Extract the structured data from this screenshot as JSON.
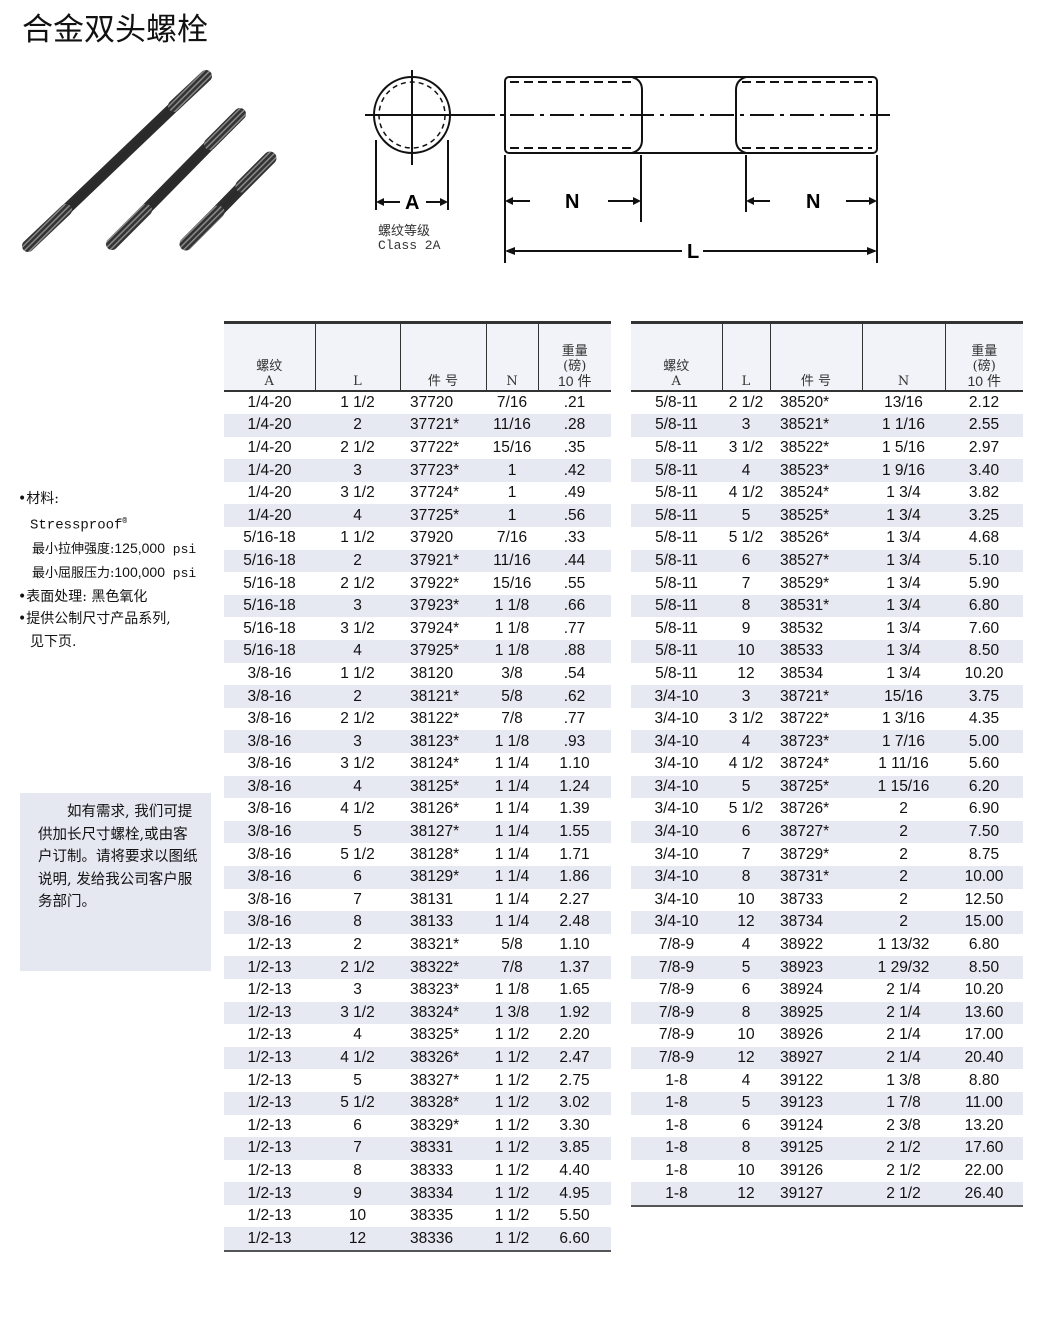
{
  "title": "合金双头螺栓",
  "drawing": {
    "label_a": "A",
    "label_n": "N",
    "label_l": "L",
    "thread_class_cn": "螺纹等级",
    "thread_class": "Class 2A"
  },
  "notes": {
    "material_label": "•材料:",
    "material": "Stressproof",
    "registered": "®",
    "tensile_label": "最小拉伸强度:",
    "tensile_value": "125,000",
    "tensile_unit": " psi",
    "yield_label": "最小屈服压力:",
    "yield_value": "100,000",
    "yield_unit": " psi",
    "finish": "•表面处理: 黑色氧化",
    "metric_1": "•提供公制尺寸产品系列,",
    "metric_2": "见下页."
  },
  "custom_note": "如有需求, 我们可提供加长尺寸螺栓,或由客户订制。请将要求以图纸说明, 发给我公司客户服务部门。",
  "table_header": {
    "thread_cn": "螺纹",
    "thread": "A",
    "length": "L",
    "part": "件 号",
    "n": "N",
    "weight_1": "重量",
    "weight_2": "(磅)",
    "weight_3": "10 件"
  },
  "table_left": [
    [
      "1/4-20",
      "1 1/2",
      "37720",
      "7/16",
      ".21"
    ],
    [
      "1/4-20",
      "2",
      "37721*",
      "11/16",
      ".28"
    ],
    [
      "1/4-20",
      "2 1/2",
      "37722*",
      "15/16",
      ".35"
    ],
    [
      "1/4-20",
      "3",
      "37723*",
      "1",
      ".42"
    ],
    [
      "1/4-20",
      "3 1/2",
      "37724*",
      "1",
      ".49"
    ],
    [
      "1/4-20",
      "4",
      "37725*",
      "1",
      ".56"
    ],
    [
      "5/16-18",
      "1 1/2",
      "37920",
      "7/16",
      ".33"
    ],
    [
      "5/16-18",
      "2",
      "37921*",
      "11/16",
      ".44"
    ],
    [
      "5/16-18",
      "2 1/2",
      "37922*",
      "15/16",
      ".55"
    ],
    [
      "5/16-18",
      "3",
      "37923*",
      "1 1/8",
      ".66"
    ],
    [
      "5/16-18",
      "3 1/2",
      "37924*",
      "1 1/8",
      ".77"
    ],
    [
      "5/16-18",
      "4",
      "37925*",
      "1 1/8",
      ".88"
    ],
    [
      "3/8-16",
      "1 1/2",
      "38120",
      "3/8",
      ".54"
    ],
    [
      "3/8-16",
      "2",
      "38121*",
      "5/8",
      ".62"
    ],
    [
      "3/8-16",
      "2 1/2",
      "38122*",
      "7/8",
      ".77"
    ],
    [
      "3/8-16",
      "3",
      "38123*",
      "1 1/8",
      ".93"
    ],
    [
      "3/8-16",
      "3 1/2",
      "38124*",
      "1 1/4",
      "1.10"
    ],
    [
      "3/8-16",
      "4",
      "38125*",
      "1 1/4",
      "1.24"
    ],
    [
      "3/8-16",
      "4 1/2",
      "38126*",
      "1 1/4",
      "1.39"
    ],
    [
      "3/8-16",
      "5",
      "38127*",
      "1 1/4",
      "1.55"
    ],
    [
      "3/8-16",
      "5 1/2",
      "38128*",
      "1 1/4",
      "1.71"
    ],
    [
      "3/8-16",
      "6",
      "38129*",
      "1 1/4",
      "1.86"
    ],
    [
      "3/8-16",
      "7",
      "38131",
      "1 1/4",
      "2.27"
    ],
    [
      "3/8-16",
      "8",
      "38133",
      "1 1/4",
      "2.48"
    ],
    [
      "1/2-13",
      "2",
      "38321*",
      "5/8",
      "1.10"
    ],
    [
      "1/2-13",
      "2 1/2",
      "38322*",
      "7/8",
      "1.37"
    ],
    [
      "1/2-13",
      "3",
      "38323*",
      "1 1/8",
      "1.65"
    ],
    [
      "1/2-13",
      "3 1/2",
      "38324*",
      "1 3/8",
      "1.92"
    ],
    [
      "1/2-13",
      "4",
      "38325*",
      "1 1/2",
      "2.20"
    ],
    [
      "1/2-13",
      "4 1/2",
      "38326*",
      "1 1/2",
      "2.47"
    ],
    [
      "1/2-13",
      "5",
      "38327*",
      "1 1/2",
      "2.75"
    ],
    [
      "1/2-13",
      "5 1/2",
      "38328*",
      "1 1/2",
      "3.02"
    ],
    [
      "1/2-13",
      "6",
      "38329*",
      "1 1/2",
      "3.30"
    ],
    [
      "1/2-13",
      "7",
      "38331",
      "1 1/2",
      "3.85"
    ],
    [
      "1/2-13",
      "8",
      "38333",
      "1 1/2",
      "4.40"
    ],
    [
      "1/2-13",
      "9",
      "38334",
      "1 1/2",
      "4.95"
    ],
    [
      "1/2-13",
      "10",
      "38335",
      "1 1/2",
      "5.50"
    ],
    [
      "1/2-13",
      "12",
      "38336",
      "1 1/2",
      "6.60"
    ]
  ],
  "table_right": [
    [
      "5/8-11",
      "2 1/2",
      "38520*",
      "13/16",
      "2.12"
    ],
    [
      "5/8-11",
      "3",
      "38521*",
      "1 1/16",
      "2.55"
    ],
    [
      "5/8-11",
      "3 1/2",
      "38522*",
      "1 5/16",
      "2.97"
    ],
    [
      "5/8-11",
      "4",
      "38523*",
      "1 9/16",
      "3.40"
    ],
    [
      "5/8-11",
      "4 1/2",
      "38524*",
      "1 3/4",
      "3.82"
    ],
    [
      "5/8-11",
      "5",
      "38525*",
      "1 3/4",
      "3.25"
    ],
    [
      "5/8-11",
      "5 1/2",
      "38526*",
      "1 3/4",
      "4.68"
    ],
    [
      "5/8-11",
      "6",
      "38527*",
      "1 3/4",
      "5.10"
    ],
    [
      "5/8-11",
      "7",
      "38529*",
      "1 3/4",
      "5.90"
    ],
    [
      "5/8-11",
      "8",
      "38531*",
      "1 3/4",
      "6.80"
    ],
    [
      "5/8-11",
      "9",
      "38532",
      "1 3/4",
      "7.60"
    ],
    [
      "5/8-11",
      "10",
      "38533",
      "1 3/4",
      "8.50"
    ],
    [
      "5/8-11",
      "12",
      "38534",
      "1 3/4",
      "10.20"
    ],
    [
      "3/4-10",
      "3",
      "38721*",
      "15/16",
      "3.75"
    ],
    [
      "3/4-10",
      "3 1/2",
      "38722*",
      "1 3/16",
      "4.35"
    ],
    [
      "3/4-10",
      "4",
      "38723*",
      "1 7/16",
      "5.00"
    ],
    [
      "3/4-10",
      "4 1/2",
      "38724*",
      "1 11/16",
      "5.60"
    ],
    [
      "3/4-10",
      "5",
      "38725*",
      "1 15/16",
      "6.20"
    ],
    [
      "3/4-10",
      "5 1/2",
      "38726*",
      "2",
      "6.90"
    ],
    [
      "3/4-10",
      "6",
      "38727*",
      "2",
      "7.50"
    ],
    [
      "3/4-10",
      "7",
      "38729*",
      "2",
      "8.75"
    ],
    [
      "3/4-10",
      "8",
      "38731*",
      "2",
      "10.00"
    ],
    [
      "3/4-10",
      "10",
      "38733",
      "2",
      "12.50"
    ],
    [
      "3/4-10",
      "12",
      "38734",
      "2",
      "15.00"
    ],
    [
      "7/8-9",
      "4",
      "38922",
      "1 13/32",
      "6.80"
    ],
    [
      "7/8-9",
      "5",
      "38923",
      "1 29/32",
      "8.50"
    ],
    [
      "7/8-9",
      "6",
      "38924",
      "2 1/4",
      "10.20"
    ],
    [
      "7/8-9",
      "8",
      "38925",
      "2 1/4",
      "13.60"
    ],
    [
      "7/8-9",
      "10",
      "38926",
      "2 1/4",
      "17.00"
    ],
    [
      "7/8-9",
      "12",
      "38927",
      "2 1/4",
      "20.40"
    ],
    [
      "1-8",
      "4",
      "39122",
      "1 3/8",
      "8.80"
    ],
    [
      "1-8",
      "5",
      "39123",
      "1 7/8",
      "11.00"
    ],
    [
      "1-8",
      "6",
      "39124",
      "2 3/8",
      "13.20"
    ],
    [
      "1-8",
      "8",
      "39125",
      "2 1/2",
      "17.60"
    ],
    [
      "1-8",
      "10",
      "39126",
      "2 1/2",
      "22.00"
    ],
    [
      "1-8",
      "12",
      "39127",
      "2 1/2",
      "26.40"
    ]
  ]
}
